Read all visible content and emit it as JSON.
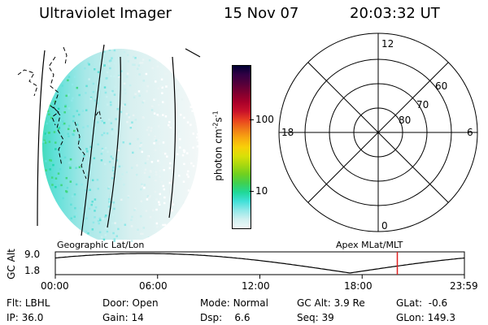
{
  "header": {
    "title": "Ultraviolet Imager",
    "date": "15 Nov 07",
    "time": "20:03:32 UT"
  },
  "colorbar": {
    "unit_label": "photon cm",
    "unit_exp1": "-2",
    "unit_s": "s",
    "unit_exp2": "-1",
    "ticks": [
      "100",
      "10"
    ],
    "colors": [
      "#000033",
      "#330044",
      "#55003a",
      "#800030",
      "#a8002a",
      "#c8102a",
      "#e84020",
      "#f07818",
      "#f8a810",
      "#f8d008",
      "#d8e008",
      "#a8d810",
      "#70d020",
      "#40d050",
      "#20d898",
      "#40e0d8",
      "#90e8e8",
      "#d0f0f0",
      "#f0f8f8"
    ]
  },
  "polar_plot": {
    "labels": {
      "top": "12",
      "bottom": "0",
      "left": "18",
      "right": "6"
    },
    "lat_labels": [
      "60",
      "70",
      "80"
    ]
  },
  "timeline": {
    "ylabel": "GC Alt",
    "yticks": [
      "9.0",
      "1.8"
    ],
    "left_caption": "Geographic Lat/Lon",
    "right_caption": "Apex  MLat/MLT",
    "xticks": [
      "00:00",
      "06:00",
      "12:00",
      "18:00",
      "23:59"
    ],
    "marker_time": "20:03",
    "marker_color": "#e02020"
  },
  "footer": {
    "row1": [
      {
        "label": "Flt:",
        "value": "LBHL"
      },
      {
        "label": "Door:",
        "value": "Open"
      },
      {
        "label": "Mode:",
        "value": "Normal"
      },
      {
        "label": "GC Alt:",
        "value": "3.9 Re"
      },
      {
        "label": "GLat:",
        "value": "-0.6"
      }
    ],
    "row2": [
      {
        "label": "IP:",
        "value": "36.0"
      },
      {
        "label": "Gain:",
        "value": "14"
      },
      {
        "label": "Dsp:",
        "value": "6.6"
      },
      {
        "label": "Seq:",
        "value": "39"
      },
      {
        "label": "GLon:",
        "value": "149.3"
      }
    ]
  }
}
